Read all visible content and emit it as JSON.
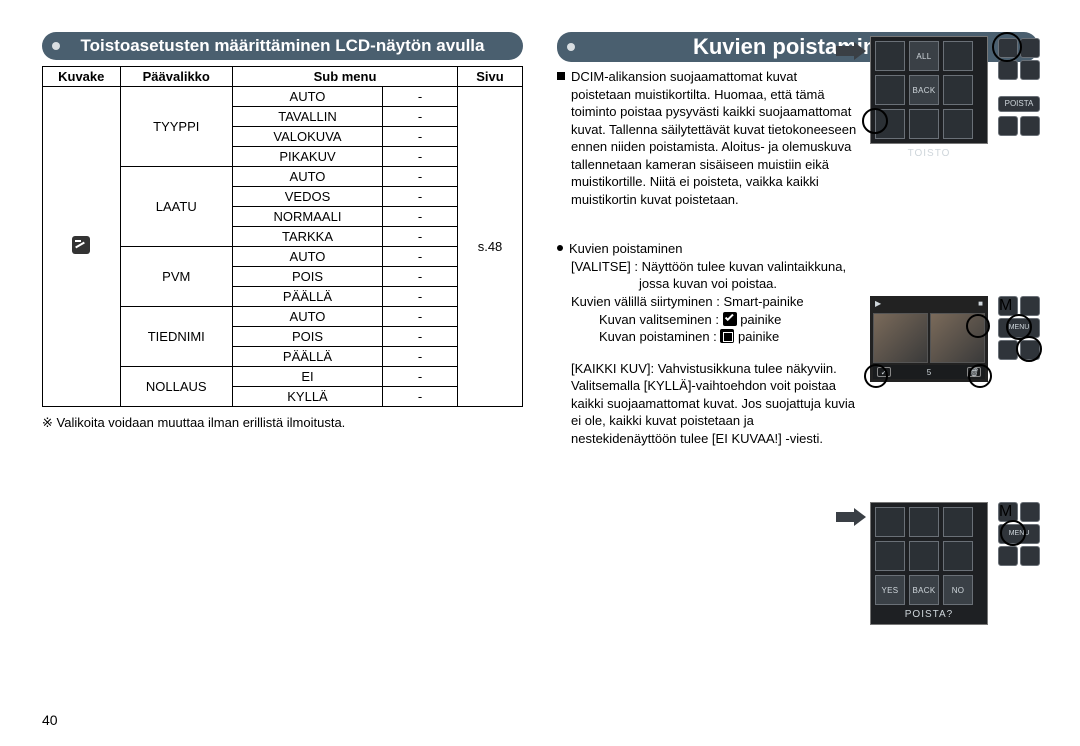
{
  "left": {
    "title": "Toistoasetusten määrittäminen LCD-näytön avulla",
    "table": {
      "headers": [
        "Kuvake",
        "Päävalikko",
        "Sub menu",
        "",
        "Sivu"
      ],
      "page_ref": "s.48",
      "groups": [
        {
          "main": "TYYPPI",
          "subs": [
            "AUTO",
            "TAVALLIN",
            "VALOKUVA",
            "PIKAKUV"
          ]
        },
        {
          "main": "LAATU",
          "subs": [
            "AUTO",
            "VEDOS",
            "NORMAALI",
            "TARKKA"
          ]
        },
        {
          "main": "PVM",
          "subs": [
            "AUTO",
            "POIS",
            "PÄÄLLÄ"
          ]
        },
        {
          "main": "TIEDNIMI",
          "subs": [
            "AUTO",
            "POIS",
            "PÄÄLLÄ"
          ]
        },
        {
          "main": "NOLLAUS",
          "subs": [
            "EI",
            "KYLLÄ"
          ]
        }
      ],
      "sub_col2_placeholder": "-"
    },
    "footnote": "※ Valikoita voidaan muuttaa ilman erillistä ilmoitusta."
  },
  "right": {
    "title": "Kuvien poistaminen",
    "para1": "DCIM-alikansion suojaamattomat kuvat poistetaan muistikortilta. Huomaa, että tämä toiminto poistaa pysyvästi kaikki suojaamattomat kuvat. Tallenna säilytettävät kuvat tietokoneeseen ennen niiden poistamista. Aloitus- ja olemuskuva tallennetaan kameran sisäiseen muistiin eikä muistikortille. Niitä ei poisteta, vaikka kaikki muistikortin kuvat poistetaan.",
    "sec2_head": "Kuvien poistaminen",
    "valitse_label": "[VALITSE] :",
    "valitse_text1": "Näyttöön tulee kuvan valintaikkuna,",
    "valitse_text2": "jossa kuvan voi poistaa.",
    "siirt": "Kuvien välillä siirtyminen : Smart-painike",
    "valits": "Kuvan valitseminen :",
    "valits_after": "painike",
    "poist": "Kuvan poistaminen :",
    "poist_after": "painike",
    "kaikki_label": "[KAIKKI KUV]:",
    "kaikki_text": "Vahvistusikkuna tulee näkyviin. Valitsemalla [KYLLÄ]-vaihtoehdon voit poistaa kaikki suojaamattomat kuvat. Jos suojattuja kuvia ei ole, kaikki kuvat poistetaan ja nestekidenäyttöön tulee [EI KUVAA!] -viesti.",
    "shot1": {
      "tiles": [
        "",
        "ALL",
        "",
        "",
        "BACK",
        "",
        "",
        "",
        ""
      ],
      "btn_label": "POISTA",
      "bottom_label": "TOISTO"
    },
    "shot2": {
      "top_left": "▶",
      "top_right": "■",
      "count": "5",
      "menu": "MENU"
    },
    "shot3": {
      "yes": "YES",
      "back": "BACK",
      "no": "NO",
      "bottom_label": "POISTA?",
      "menu": "MENU"
    }
  },
  "page_number": "40"
}
